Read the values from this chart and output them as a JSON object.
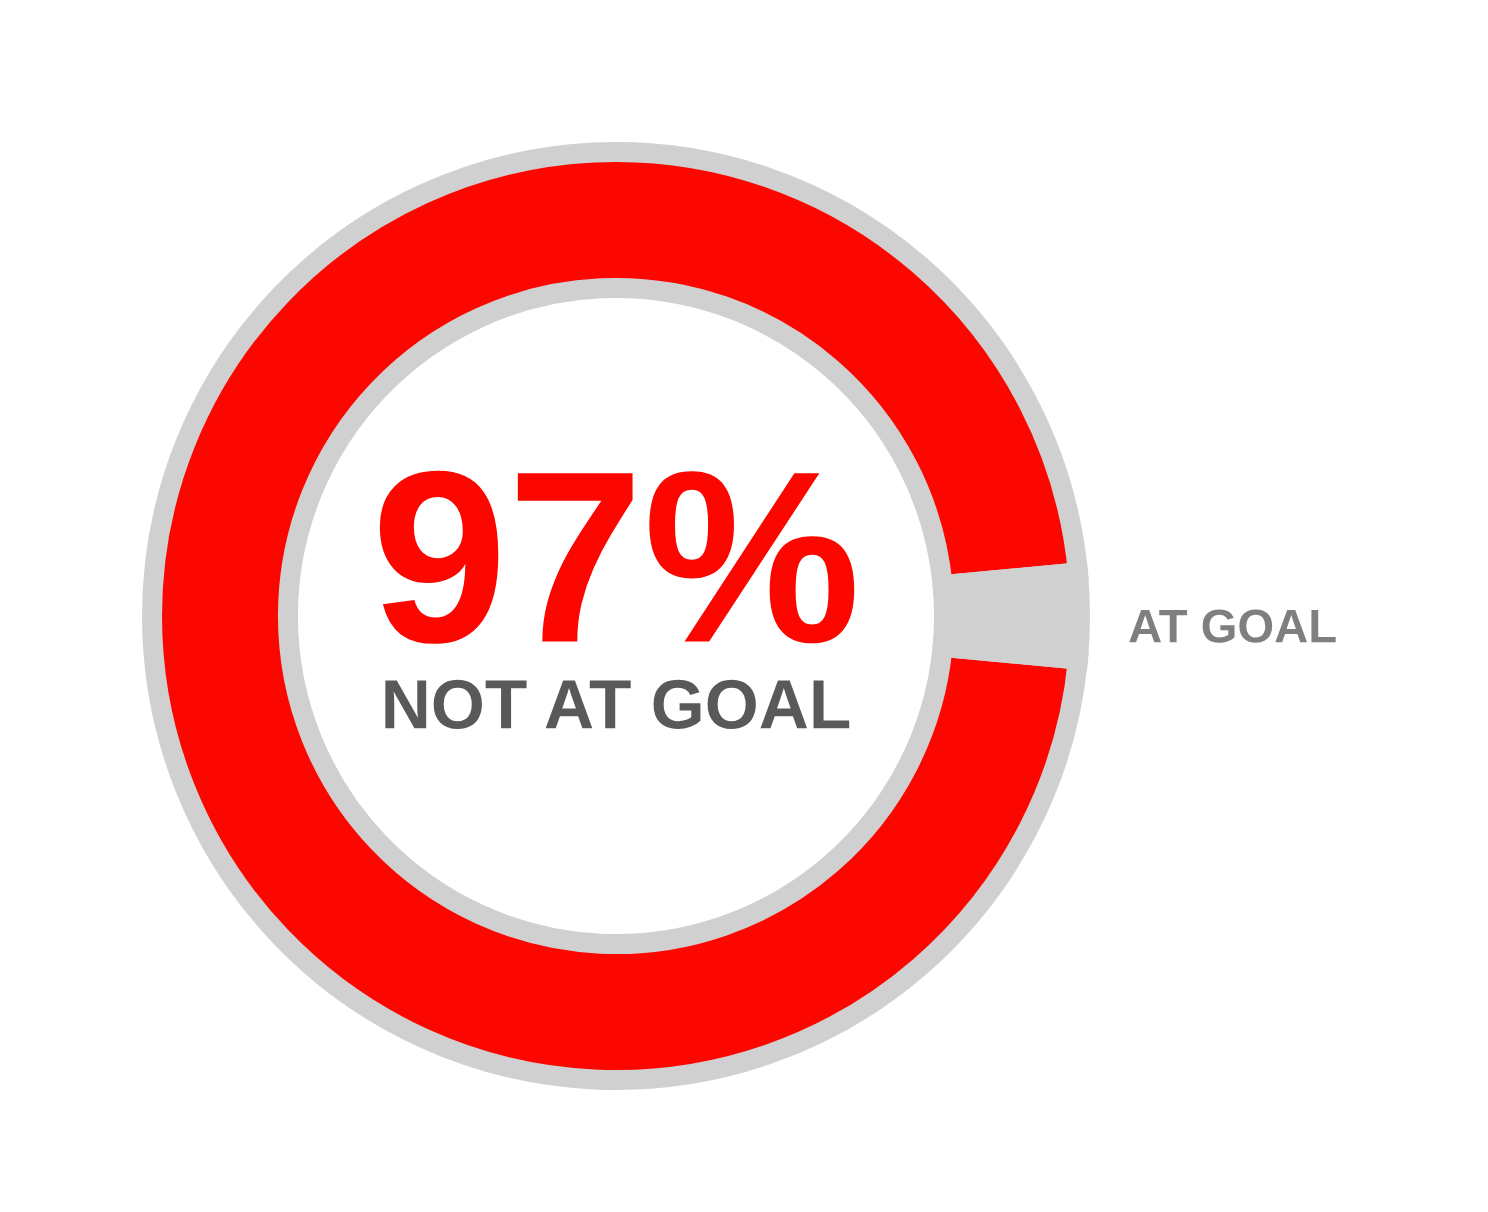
{
  "chart_data": {
    "type": "donut",
    "categories": [
      "NOT AT GOAL",
      "AT GOAL"
    ],
    "values": [
      97,
      3
    ],
    "colors": [
      "#fb0700",
      "#d0d0d0"
    ],
    "value_labels": [
      "97%",
      null
    ],
    "legend": false
  }
}
